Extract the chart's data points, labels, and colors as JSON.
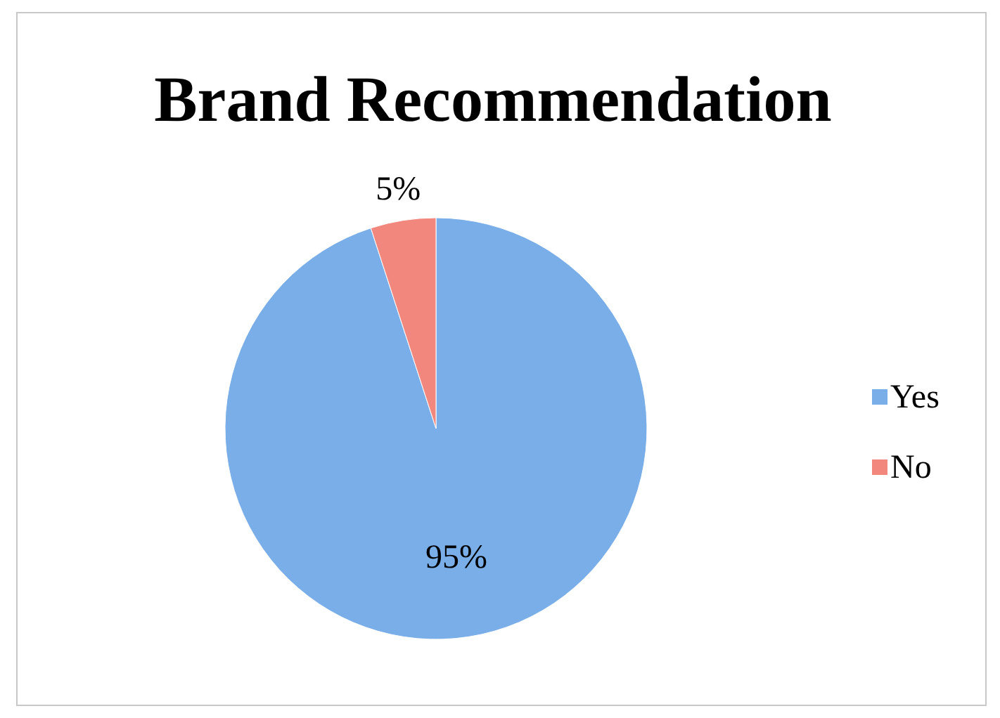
{
  "chart_data": {
    "type": "pie",
    "title": "Brand Recommendation",
    "categories": [
      "Yes",
      "No"
    ],
    "values": [
      95,
      5
    ],
    "value_labels": [
      "95%",
      "5%"
    ],
    "colors": [
      "#79aee9",
      "#f2877e"
    ],
    "legend": "right"
  }
}
